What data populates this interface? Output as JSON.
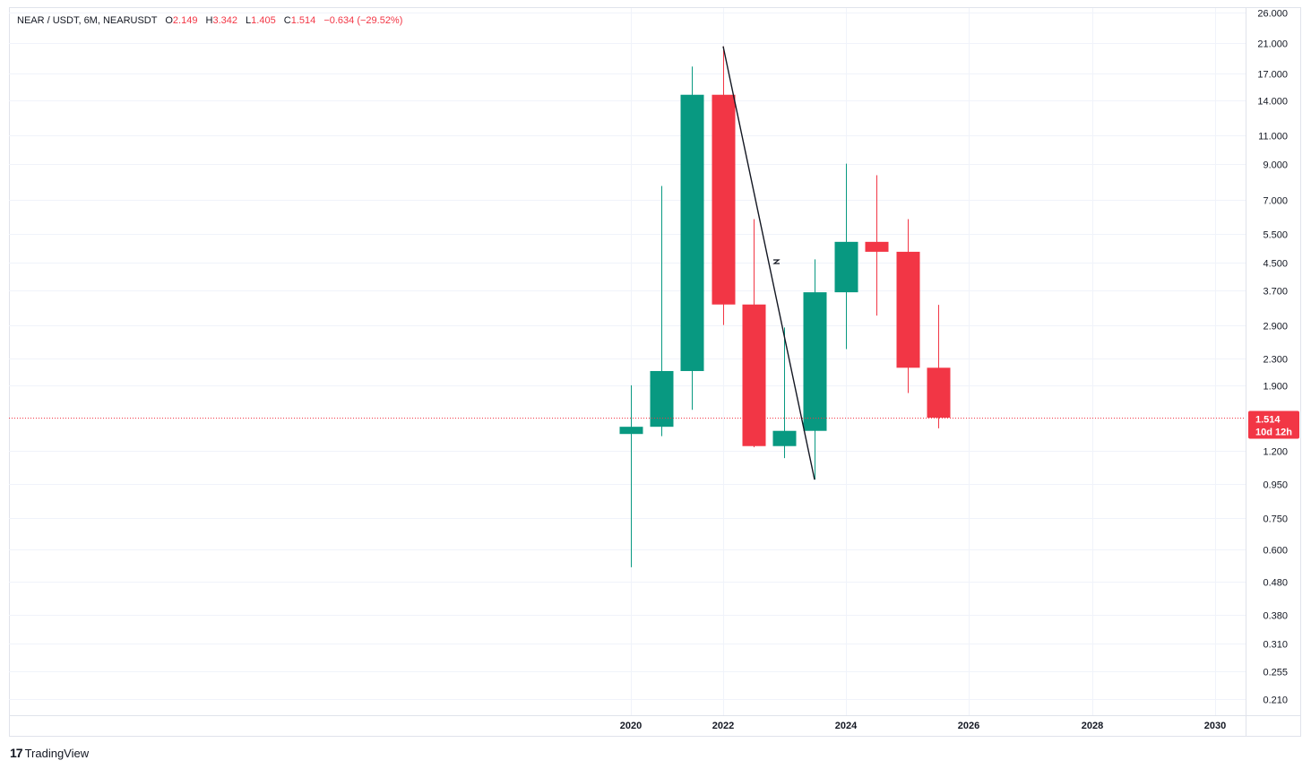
{
  "legend": {
    "symbol": "NEAR / USDT, 6M, NEARUSDT",
    "o_label": "O",
    "o_value": "2.149",
    "h_label": "H",
    "h_value": "3.342",
    "l_label": "L",
    "l_value": "1.405",
    "c_label": "C",
    "c_value": "1.514",
    "change": "−0.634 (−29.52%)"
  },
  "price_tag": {
    "price": "1.514",
    "countdown": "10d 12h"
  },
  "branding": {
    "logo_mark": "17",
    "name": "TradingView"
  },
  "colors": {
    "up": "#089981",
    "down": "#f23645",
    "grid": "#f0f3fa",
    "text": "#131722"
  },
  "chart_data": {
    "type": "candlestick",
    "symbol": "NEAR / USDT",
    "interval": "6M",
    "y_scale": "log",
    "y_ticks": [
      "26.000",
      "21.000",
      "17.000",
      "14.000",
      "11.000",
      "9.000",
      "7.000",
      "5.500",
      "4.500",
      "3.700",
      "2.900",
      "2.300",
      "1.900",
      "1.200",
      "0.950",
      "0.750",
      "0.600",
      "0.480",
      "0.380",
      "0.310",
      "0.255",
      "0.210"
    ],
    "x_ticks": [
      "2020",
      "2022",
      "2024",
      "2026",
      "2028",
      "2030"
    ],
    "candles": [
      {
        "period": "2020-H1",
        "open": 1.35,
        "high": 1.9,
        "low": 0.53,
        "close": 1.42
      },
      {
        "period": "2020-H2",
        "open": 1.42,
        "high": 7.7,
        "low": 1.33,
        "close": 2.1
      },
      {
        "period": "2021-H1",
        "open": 2.1,
        "high": 17.8,
        "low": 1.6,
        "close": 14.6
      },
      {
        "period": "2021-H2",
        "open": 14.6,
        "high": 20.5,
        "low": 2.9,
        "close": 3.35
      },
      {
        "period": "2022-H1",
        "open": 3.35,
        "high": 6.1,
        "low": 1.23,
        "close": 1.24
      },
      {
        "period": "2022-H2",
        "open": 1.24,
        "high": 2.85,
        "low": 1.14,
        "close": 1.38
      },
      {
        "period": "2023-H1",
        "open": 1.38,
        "high": 4.6,
        "low": 0.98,
        "close": 3.65
      },
      {
        "period": "2023-H2",
        "open": 3.65,
        "high": 9.0,
        "low": 2.45,
        "close": 5.2
      },
      {
        "period": "2024-H1",
        "open": 5.2,
        "high": 8.3,
        "low": 3.1,
        "close": 4.85
      },
      {
        "period": "2024-H2",
        "open": 4.85,
        "high": 6.1,
        "low": 1.8,
        "close": 2.149
      },
      {
        "period": "2025-H1",
        "open": 2.149,
        "high": 3.342,
        "low": 1.405,
        "close": 1.514
      }
    ],
    "trendline": {
      "from": {
        "period": "2021-H2",
        "price": 20.5
      },
      "to": {
        "period": "2023-H1",
        "price": 0.98
      }
    },
    "last_price": 1.514
  }
}
